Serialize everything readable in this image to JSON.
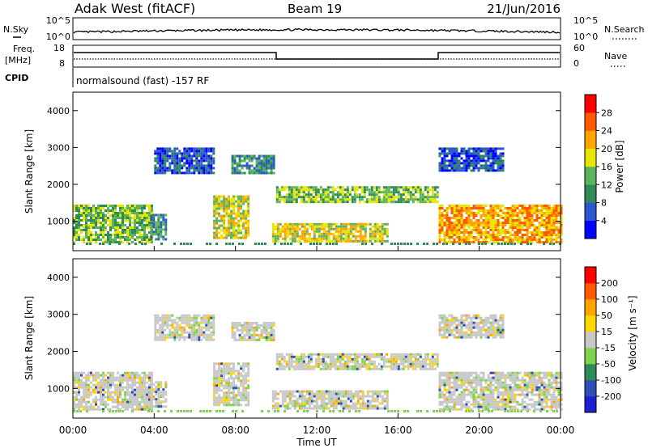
{
  "header": {
    "station": "Adak West (fitACF)",
    "beam": "Beam 19",
    "date": "21/Jun/2016"
  },
  "strip_panels": {
    "nsky": {
      "label": "N.Sky",
      "ticks": [
        "10^5",
        "10^0"
      ],
      "right_label": "N.Search",
      "right_ticks": [
        "10^5",
        "10^0"
      ]
    },
    "freq": {
      "label_line1": "Freq.",
      "label_line2": "[MHz]",
      "ticks": [
        "18",
        "8"
      ],
      "right_label": "Nave",
      "right_ticks": [
        "60",
        "0"
      ]
    },
    "cpid": {
      "label": "CPID",
      "text": "normalsound (fast) -157 RF"
    }
  },
  "colors": {
    "power_scale": [
      "#0000ff",
      "#2a57d0",
      "#2e8b57",
      "#5bb35b",
      "#e6e600",
      "#ffa500",
      "#ff5a00",
      "#ff0000"
    ],
    "velocity_scale": [
      "#ff0000",
      "#ff5a00",
      "#ffa500",
      "#ffd700",
      "#c8c8c8",
      "#7fd34a",
      "#2e8b57",
      "#2f4fb5",
      "#1f1fd0"
    ]
  },
  "chart_data": [
    {
      "type": "heatmap",
      "name": "power",
      "ylabel": "Slant Range [km]",
      "yticks": [
        "1000",
        "2000",
        "3000",
        "4000"
      ],
      "ylim": [
        200,
        4500
      ],
      "colorbar_label": "Power [dB]",
      "colorbar_ticks": [
        "4",
        "8",
        "12",
        "16",
        "20",
        "24",
        "28"
      ],
      "echo_regions": [
        {
          "t0": 0.0,
          "t1": 3.9,
          "r0": 450,
          "r1": 1450,
          "level": 3
        },
        {
          "t0": 3.8,
          "t1": 4.6,
          "r0": 500,
          "r1": 1200,
          "level": 2
        },
        {
          "t0": 6.9,
          "t1": 8.6,
          "r0": 550,
          "r1": 1700,
          "level": 4
        },
        {
          "t0": 4.0,
          "t1": 6.9,
          "r0": 2300,
          "r1": 3000,
          "level": 1
        },
        {
          "t0": 7.8,
          "t1": 9.9,
          "r0": 2300,
          "r1": 2800,
          "level": 2
        },
        {
          "t0": 10.0,
          "t1": 18.0,
          "r0": 1500,
          "r1": 1950,
          "level": 3
        },
        {
          "t0": 9.8,
          "t1": 15.5,
          "r0": 450,
          "r1": 950,
          "level": 4
        },
        {
          "t0": 18.0,
          "t1": 24.0,
          "r0": 450,
          "r1": 1450,
          "level": 5
        },
        {
          "t0": 18.0,
          "t1": 21.2,
          "r0": 2400,
          "r1": 3000,
          "level": 1
        }
      ]
    },
    {
      "type": "heatmap",
      "name": "velocity",
      "ylabel": "Slant Range [km]",
      "yticks": [
        "1000",
        "2000",
        "3000",
        "4000"
      ],
      "ylim": [
        200,
        4500
      ],
      "colorbar_label": "Velocity [m s⁻¹]",
      "colorbar_ticks": [
        "200",
        "100",
        "50",
        "15",
        "-15",
        "-50",
        "-100",
        "-200"
      ],
      "xlabel": "Time UT",
      "xticks": [
        "00:00",
        "04:00",
        "08:00",
        "12:00",
        "16:00",
        "20:00",
        "00:00"
      ],
      "xlim": [
        0,
        24
      ]
    }
  ]
}
